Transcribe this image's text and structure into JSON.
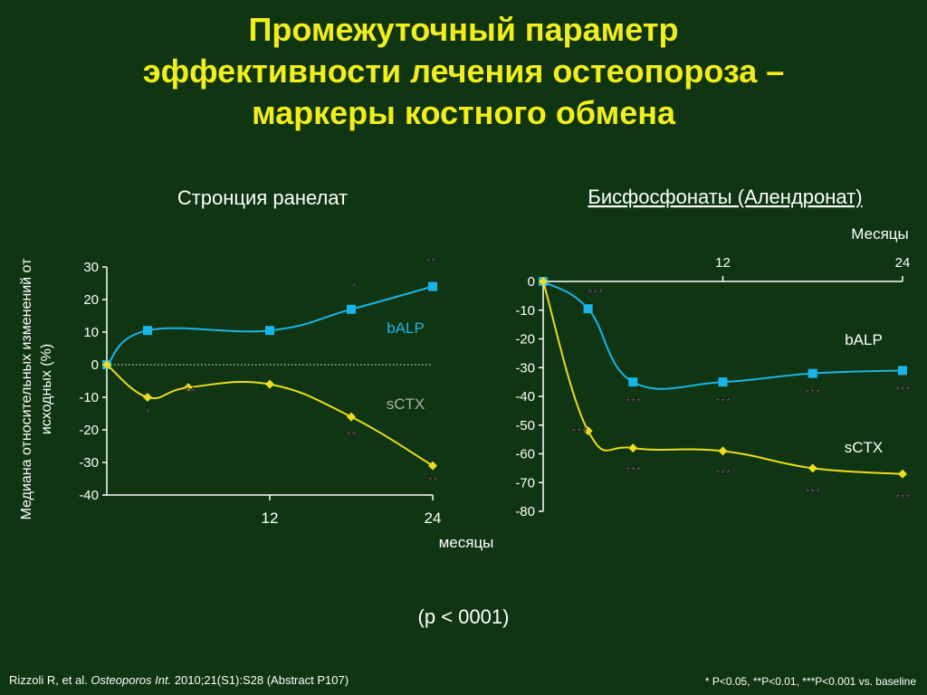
{
  "title_lines": [
    "Промежуточный параметр",
    "эффективности лечения остеопороза –",
    "маркеры костного обмена"
  ],
  "y_axis_label_lines": [
    "Медиана относительных изменений от",
    "исходных  (%)"
  ],
  "p_note": "(p < 0001)",
  "footer": {
    "citation_authors": "Rizzoli R, et al. ",
    "citation_journal": "Osteoporos Int.",
    "citation_rest": " 2010;21(S1):S28 (Abstract P107)",
    "significance": "* P<0.05, **P<0.01, ***P<0.001 vs. baseline"
  },
  "colors": {
    "balp": "#1ab5e8",
    "sctx": "#ecdc1e",
    "title": "#f2ee1c",
    "axis": "#ffffff"
  },
  "chart_data": [
    {
      "type": "line",
      "title": "Стронция ранелат",
      "xlabel": "месяцы",
      "x_ticks": [
        12,
        24
      ],
      "y_ticks": [
        30,
        20,
        10,
        0,
        -10,
        -20,
        -30,
        -40
      ],
      "xlim": [
        0,
        24
      ],
      "ylim": [
        -40,
        30
      ],
      "baseline_dotted": true,
      "series": [
        {
          "name": "bALP",
          "marker": "square",
          "x": [
            0,
            3,
            12,
            18,
            24
          ],
          "y": [
            0,
            10.5,
            10.5,
            17,
            24
          ],
          "significance": [
            "",
            "",
            "",
            "*",
            "**"
          ]
        },
        {
          "name": "sCTX",
          "marker": "diamond",
          "x": [
            0,
            3,
            6,
            12,
            18,
            24
          ],
          "y": [
            0,
            -10,
            -7,
            -6,
            -16,
            -31
          ],
          "significance": [
            "",
            "*",
            "**",
            "",
            "**",
            "**"
          ]
        }
      ]
    },
    {
      "type": "line",
      "title": "Бисфосфонаты (Алендронат)",
      "xlabel": "Месяцы",
      "x_ticks": [
        12,
        24
      ],
      "y_ticks": [
        0,
        -10,
        -20,
        -30,
        -40,
        -50,
        -60,
        -70,
        -80
      ],
      "xlim": [
        0,
        24
      ],
      "ylim": [
        -80,
        0
      ],
      "series": [
        {
          "name": "bALP",
          "marker": "square",
          "x": [
            0,
            3,
            6,
            12,
            18,
            24
          ],
          "y": [
            0,
            -9.5,
            -35,
            -35,
            -32,
            -31
          ],
          "significance": [
            "",
            "***",
            "***",
            "***",
            "***",
            "***"
          ]
        },
        {
          "name": "sCTX",
          "marker": "diamond",
          "x": [
            0,
            3,
            6,
            12,
            18,
            24
          ],
          "y": [
            0,
            -52,
            -58,
            -59,
            -65,
            -67
          ],
          "significance": [
            "",
            "***",
            "***",
            "***",
            "***",
            "***"
          ]
        }
      ]
    }
  ]
}
